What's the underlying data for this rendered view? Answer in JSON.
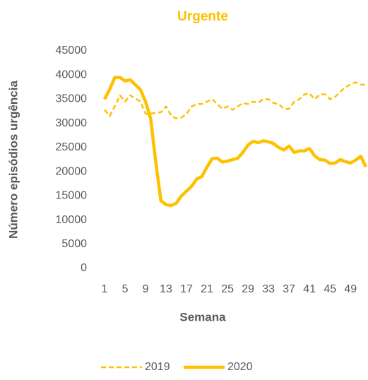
{
  "chart_data": {
    "type": "line",
    "title": "Urgente",
    "x_label": "Semana",
    "y_label": "Número episódios urgência",
    "x": [
      1,
      2,
      3,
      4,
      5,
      6,
      7,
      8,
      9,
      10,
      11,
      12,
      13,
      14,
      15,
      16,
      17,
      18,
      19,
      20,
      21,
      22,
      23,
      24,
      25,
      26,
      27,
      28,
      29,
      30,
      31,
      32,
      33,
      34,
      35,
      36,
      37,
      38,
      39,
      40,
      41,
      42,
      43,
      44,
      45,
      46,
      47,
      48,
      49,
      50,
      51,
      52
    ],
    "xlim": [
      1,
      52
    ],
    "xticks": [
      1,
      5,
      9,
      13,
      17,
      21,
      25,
      29,
      33,
      37,
      41,
      45,
      49
    ],
    "ylim": [
      0,
      45000
    ],
    "yticks": [
      0,
      5000,
      10000,
      15000,
      20000,
      25000,
      30000,
      35000,
      40000,
      45000
    ],
    "grid": false,
    "legend": "bottom",
    "series": [
      {
        "name": "2019",
        "color": "#ffc000",
        "dashed": true,
        "values": [
          32800,
          31500,
          33500,
          35800,
          34500,
          35800,
          35200,
          34500,
          32000,
          32000,
          32200,
          32300,
          33500,
          31600,
          31000,
          31200,
          32000,
          33500,
          34000,
          34000,
          34500,
          35000,
          34000,
          33000,
          33500,
          32800,
          33500,
          34200,
          34000,
          34500,
          34300,
          35000,
          35000,
          34200,
          34000,
          33000,
          33000,
          34500,
          35000,
          36000,
          36200,
          35000,
          36000,
          36000,
          35000,
          35500,
          36500,
          37500,
          38000,
          38500,
          38000,
          38000
        ]
      },
      {
        "name": "2020",
        "color": "#ffc000",
        "dashed": false,
        "values": [
          35000,
          37000,
          39500,
          39500,
          38800,
          39000,
          38000,
          37000,
          34500,
          31000,
          22000,
          14000,
          13200,
          13000,
          13500,
          15000,
          16000,
          17000,
          18500,
          19000,
          21000,
          22700,
          22800,
          22000,
          22200,
          22500,
          22800,
          24000,
          25500,
          26300,
          26000,
          26400,
          26200,
          25800,
          25000,
          24500,
          25300,
          24000,
          24300,
          24300,
          24800,
          23300,
          22500,
          22400,
          21700,
          21800,
          22500,
          22100,
          21800,
          22400,
          23200,
          21000
        ]
      }
    ]
  }
}
